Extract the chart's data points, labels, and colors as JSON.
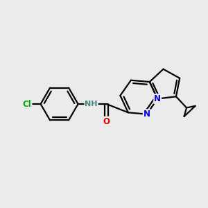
{
  "background_color": "#ebebeb",
  "bond_color": "#000000",
  "bond_width": 1.6,
  "atom_colors": {
    "N": "#0000ee",
    "O": "#dd0000",
    "Cl": "#00aa00",
    "NH": "#448888"
  },
  "font_size": 8.5,
  "figsize": [
    3.0,
    3.0
  ],
  "dpi": 100,
  "xlim": [
    -4.8,
    4.8
  ],
  "ylim": [
    -3.5,
    3.5
  ]
}
